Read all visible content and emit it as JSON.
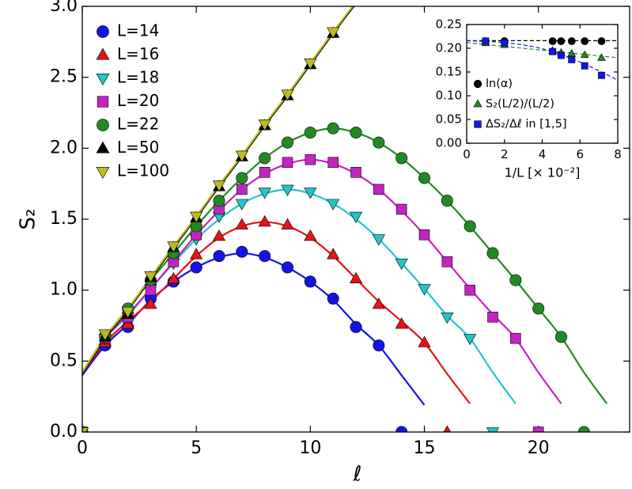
{
  "chart_data": [
    {
      "type": "line",
      "x_label": "ℓ",
      "y_label": "S₂",
      "xlim": [
        0,
        24
      ],
      "ylim": [
        0,
        3
      ],
      "xticks": [
        0,
        5,
        10,
        15,
        20
      ],
      "yticks": [
        {
          "value": 0,
          "label": "0.0"
        },
        {
          "value": 0.5,
          "label": "0.5"
        },
        {
          "value": 1,
          "label": "1.0"
        },
        {
          "value": 1.5,
          "label": "1.5"
        },
        {
          "value": 2,
          "label": "2.0"
        },
        {
          "value": 2.5,
          "label": "2.5"
        },
        {
          "value": 3,
          "label": "3.0"
        }
      ],
      "legend": "upper left",
      "series": [
        {
          "name": "L=14",
          "color": "#1414e6",
          "marker": "circle",
          "x": [
            0,
            1,
            2,
            3,
            4,
            5,
            6,
            7,
            8,
            9,
            10,
            11,
            12,
            13,
            14
          ],
          "values": [
            0,
            0.61,
            0.74,
            0.94,
            1.06,
            1.16,
            1.24,
            1.27,
            1.24,
            1.16,
            1.06,
            0.94,
            0.74,
            0.61,
            0
          ]
        },
        {
          "name": "L=16",
          "color": "#e61414",
          "marker": "triangle-up",
          "x": [
            0,
            1,
            2,
            3,
            4,
            5,
            6,
            7,
            8,
            9,
            10,
            11,
            12,
            13,
            14,
            15,
            16
          ],
          "values": [
            0,
            0.63,
            0.76,
            0.9,
            1.08,
            1.25,
            1.38,
            1.46,
            1.48,
            1.46,
            1.38,
            1.25,
            1.08,
            0.9,
            0.76,
            0.63,
            0
          ]
        },
        {
          "name": "L=18",
          "color": "#24c4c8",
          "marker": "triangle-down",
          "x": [
            0,
            1,
            2,
            3,
            4,
            5,
            6,
            7,
            8,
            9,
            10,
            11,
            12,
            13,
            14,
            15,
            16,
            17,
            18
          ],
          "values": [
            0,
            0.66,
            0.81,
            1.01,
            1.19,
            1.36,
            1.52,
            1.61,
            1.69,
            1.71,
            1.69,
            1.61,
            1.52,
            1.36,
            1.19,
            1.01,
            0.81,
            0.66,
            0
          ]
        },
        {
          "name": "L=20",
          "color": "#c224c2",
          "marker": "square",
          "x": [
            0,
            1,
            2,
            3,
            4,
            5,
            6,
            7,
            8,
            9,
            10,
            11,
            12,
            13,
            14,
            15,
            16,
            17,
            18,
            19,
            20
          ],
          "values": [
            0,
            0.66,
            0.81,
            1.0,
            1.2,
            1.39,
            1.57,
            1.71,
            1.83,
            1.9,
            1.92,
            1.9,
            1.83,
            1.71,
            1.57,
            1.39,
            1.2,
            1.0,
            0.81,
            0.66,
            0
          ]
        },
        {
          "name": "L=22",
          "color": "#228a22",
          "marker": "circle",
          "x": [
            0,
            1,
            2,
            3,
            4,
            5,
            6,
            7,
            8,
            9,
            10,
            11,
            12,
            13,
            14,
            15,
            16,
            17,
            18,
            19,
            20,
            21,
            22
          ],
          "values": [
            0,
            0.67,
            0.87,
            1.07,
            1.26,
            1.45,
            1.63,
            1.79,
            1.93,
            2.04,
            2.11,
            2.14,
            2.11,
            2.04,
            1.93,
            1.79,
            1.63,
            1.45,
            1.26,
            1.07,
            0.87,
            0.67,
            0
          ]
        },
        {
          "name": "L=50",
          "color": "#000000",
          "marker": "triangle-up",
          "x": [
            0,
            1,
            2,
            3,
            4,
            5,
            6,
            7,
            8,
            9,
            10,
            11
          ],
          "values": [
            0,
            0.67,
            0.83,
            1.09,
            1.3,
            1.51,
            1.73,
            1.94,
            2.16,
            2.37,
            2.59,
            2.81
          ]
        },
        {
          "name": "L=100",
          "color": "#bcbc22",
          "marker": "triangle-down",
          "x": [
            0,
            1,
            2,
            3,
            4,
            5,
            6,
            7,
            8,
            9,
            10,
            11
          ],
          "values": [
            0,
            0.69,
            0.85,
            1.1,
            1.31,
            1.52,
            1.74,
            1.95,
            2.17,
            2.38,
            2.6,
            2.82
          ]
        }
      ],
      "fits": [
        {
          "color": "#1414e6",
          "x": [
            0,
            1,
            2,
            3,
            4,
            5,
            6,
            7,
            8,
            9,
            10,
            11,
            12,
            13,
            14,
            15
          ],
          "values": [
            0.4,
            0.61,
            0.76,
            0.93,
            1.06,
            1.16,
            1.23,
            1.26,
            1.23,
            1.16,
            1.06,
            0.93,
            0.76,
            0.61,
            0.4,
            0.19
          ]
        },
        {
          "color": "#e61414",
          "x": [
            0,
            1,
            2,
            3,
            4,
            5,
            6,
            7,
            8,
            9,
            10,
            11,
            12,
            13,
            14,
            15,
            16,
            17
          ],
          "values": [
            0.41,
            0.63,
            0.78,
            0.92,
            1.08,
            1.24,
            1.37,
            1.45,
            1.48,
            1.45,
            1.37,
            1.24,
            1.08,
            0.92,
            0.78,
            0.63,
            0.41,
            0.2
          ]
        },
        {
          "color": "#24c4c8",
          "x": [
            0,
            1,
            2,
            3,
            4,
            5,
            6,
            7,
            8,
            9,
            10,
            11,
            12,
            13,
            14,
            15,
            16,
            17,
            18,
            19
          ],
          "values": [
            0.42,
            0.66,
            0.82,
            1.01,
            1.19,
            1.36,
            1.5,
            1.61,
            1.68,
            1.71,
            1.68,
            1.61,
            1.5,
            1.36,
            1.19,
            1.01,
            0.82,
            0.66,
            0.42,
            0.2
          ]
        },
        {
          "color": "#c224c2",
          "x": [
            0,
            1,
            2,
            3,
            4,
            5,
            6,
            7,
            8,
            9,
            10,
            11,
            12,
            13,
            14,
            15,
            16,
            17,
            18,
            19,
            20,
            21
          ],
          "values": [
            0.42,
            0.66,
            0.83,
            1.01,
            1.2,
            1.39,
            1.56,
            1.71,
            1.82,
            1.89,
            1.92,
            1.89,
            1.82,
            1.71,
            1.56,
            1.39,
            1.2,
            1.01,
            0.83,
            0.66,
            0.42,
            0.2
          ]
        },
        {
          "color": "#228a22",
          "x": [
            0,
            1,
            2,
            3,
            4,
            5,
            6,
            7,
            8,
            9,
            10,
            11,
            12,
            13,
            14,
            15,
            16,
            17,
            18,
            19,
            20,
            21,
            22,
            23
          ],
          "values": [
            0.42,
            0.67,
            0.87,
            1.07,
            1.26,
            1.45,
            1.63,
            1.79,
            1.93,
            2.04,
            2.11,
            2.14,
            2.11,
            2.04,
            1.93,
            1.79,
            1.63,
            1.45,
            1.26,
            1.07,
            0.87,
            0.67,
            0.42,
            0.2
          ]
        },
        {
          "color": "#000000",
          "x": [
            0,
            1,
            2,
            3,
            4,
            5,
            6,
            7,
            8,
            9,
            10,
            11,
            12
          ],
          "values": [
            0.41,
            0.66,
            0.86,
            1.08,
            1.3,
            1.51,
            1.73,
            1.94,
            2.16,
            2.37,
            2.59,
            2.81,
            3.02
          ]
        },
        {
          "color": "#bcbc22",
          "x": [
            0,
            1,
            2,
            3,
            4,
            5,
            6,
            7,
            8,
            9,
            10,
            11,
            12
          ],
          "values": [
            0.42,
            0.67,
            0.87,
            1.09,
            1.31,
            1.52,
            1.74,
            1.95,
            2.17,
            2.38,
            2.6,
            2.82,
            3.03
          ]
        }
      ]
    },
    {
      "type": "scatter",
      "x_label": "1/L [× 10⁻²]",
      "xlim": [
        0,
        8
      ],
      "ylim": [
        0,
        0.25
      ],
      "xticks": [
        0,
        2,
        4,
        6,
        8
      ],
      "yticks": [
        {
          "value": 0,
          "label": "0.00"
        },
        {
          "value": 0.05,
          "label": "0.05"
        },
        {
          "value": 0.1,
          "label": "0.10"
        },
        {
          "value": 0.15,
          "label": "0.15"
        },
        {
          "value": 0.2,
          "label": "0.20"
        },
        {
          "value": 0.25,
          "label": "0.25"
        }
      ],
      "legend": "lower left",
      "series": [
        {
          "name": "ln(α)",
          "color": "#000000",
          "marker": "circle",
          "x": [
            1,
            2,
            4.55,
            5,
            5.56,
            6.25,
            7.14
          ],
          "values": [
            0.215,
            0.215,
            0.215,
            0.215,
            0.215,
            0.215,
            0.215
          ]
        },
        {
          "name": "S₂(L/2)/(L/2)",
          "color": "#228a22",
          "marker": "triangle-up",
          "x": [
            1,
            2,
            4.55,
            5,
            5.56,
            6.25,
            7.14
          ],
          "values": [
            0.211,
            0.207,
            0.195,
            0.191,
            0.189,
            0.186,
            0.18
          ]
        },
        {
          "name": "ΔS₂/Δℓ in [1,5]",
          "color": "#1414e6",
          "marker": "square",
          "x": [
            1,
            2,
            4.55,
            5,
            5.56,
            6.25,
            7.14
          ],
          "values": [
            0.215,
            0.211,
            0.193,
            0.185,
            0.176,
            0.163,
            0.143
          ]
        }
      ],
      "fits": [
        {
          "color": "#000000",
          "x": [
            0,
            8
          ],
          "values": [
            0.216,
            0.216
          ]
        },
        {
          "color": "#228a22",
          "x": [
            0,
            8
          ],
          "values": [
            0.212,
            0.18
          ]
        },
        {
          "color": "#1414e6",
          "x": [
            0,
            2,
            4,
            6,
            8
          ],
          "values": [
            0.216,
            0.212,
            0.199,
            0.171,
            0.133
          ]
        }
      ]
    }
  ]
}
